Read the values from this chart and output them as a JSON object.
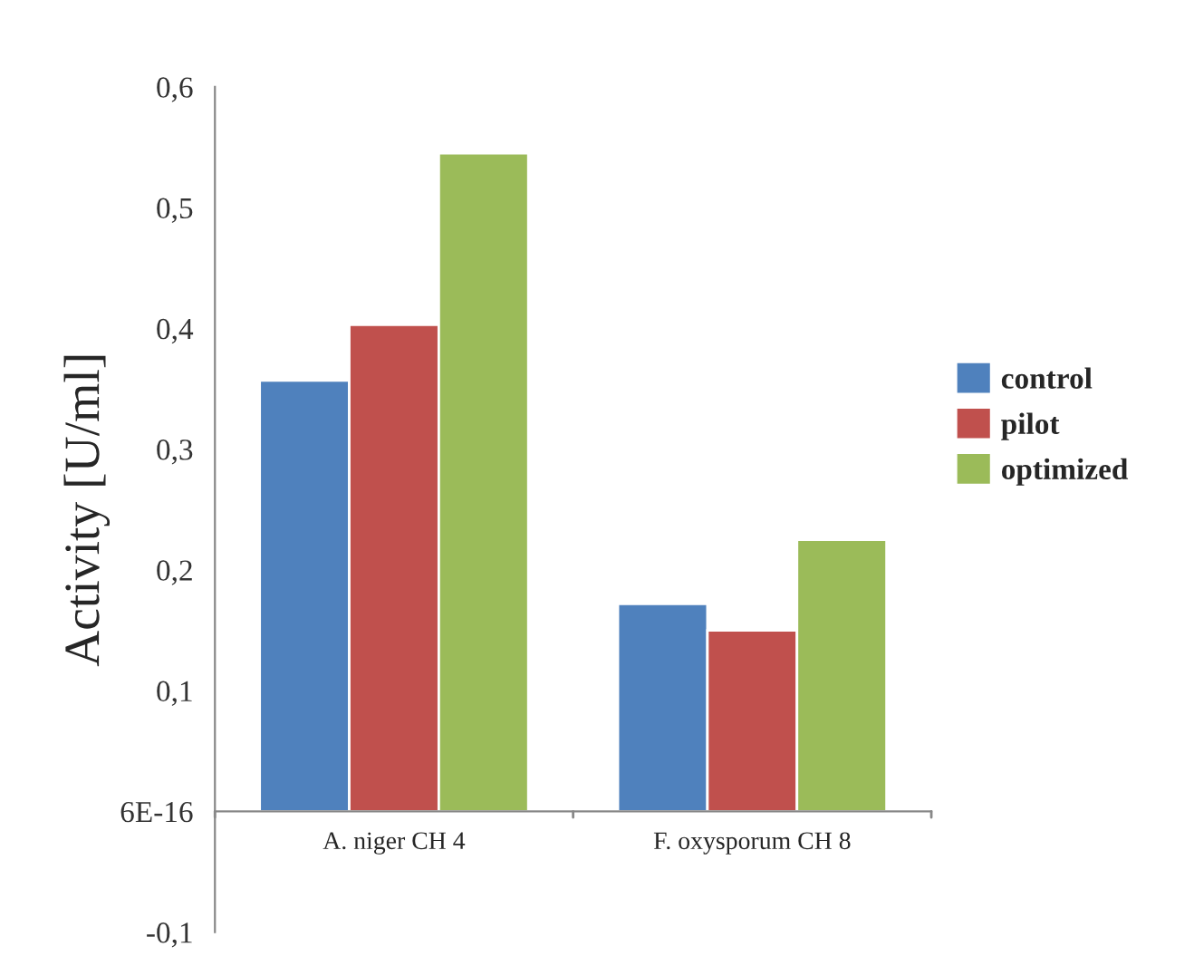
{
  "chart_data": {
    "type": "bar",
    "ylabel": "Activity [U/ml]",
    "categories": [
      "A. niger CH 4",
      "F. oxysporum CH 8"
    ],
    "series": [
      {
        "name": "control",
        "color": "#4f81bd",
        "values": [
          0.357,
          0.172
        ]
      },
      {
        "name": "pilot",
        "color": "#c0504d",
        "values": [
          0.403,
          0.15
        ]
      },
      {
        "name": "optimized",
        "color": "#9bbb59",
        "values": [
          0.545,
          0.225
        ]
      }
    ],
    "ylim": [
      -0.1,
      0.6
    ],
    "yticks": [
      {
        "value": -0.1,
        "label": "-0,1"
      },
      {
        "value": 0,
        "label": "6E-16"
      },
      {
        "value": 0.1,
        "label": "0,1"
      },
      {
        "value": 0.2,
        "label": "0,2"
      },
      {
        "value": 0.3,
        "label": "0,3"
      },
      {
        "value": 0.4,
        "label": "0,4"
      },
      {
        "value": 0.5,
        "label": "0,5"
      },
      {
        "value": 0.6,
        "label": "0,6"
      }
    ],
    "legend": "right",
    "grid": false
  }
}
